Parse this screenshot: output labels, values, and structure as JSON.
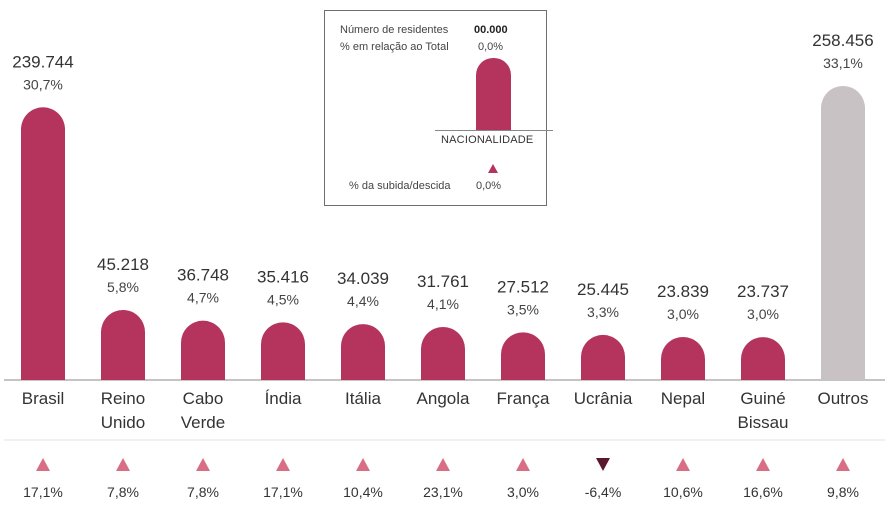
{
  "chart_data": {
    "type": "bar",
    "categories": [
      [
        "Brasil"
      ],
      [
        "Reino",
        "Unido"
      ],
      [
        "Cabo",
        "Verde"
      ],
      [
        "Índia"
      ],
      [
        "Itália"
      ],
      [
        "Angola"
      ],
      [
        "França"
      ],
      [
        "Ucrânia"
      ],
      [
        "Nepal"
      ],
      [
        "Guiné",
        "Bissau"
      ],
      [
        "Outros"
      ]
    ],
    "values": [
      239744,
      45218,
      36748,
      35416,
      34039,
      31761,
      27512,
      25445,
      23839,
      23737,
      258456
    ],
    "value_labels": [
      "239.744",
      "45.218",
      "36.748",
      "35.416",
      "34.039",
      "31.761",
      "27.512",
      "25.445",
      "23.839",
      "23.737",
      "258.456"
    ],
    "share_labels": [
      "30,7%",
      "5,8%",
      "4,7%",
      "4,5%",
      "4,4%",
      "4,1%",
      "3,5%",
      "3,3%",
      "3,0%",
      "3,0%",
      "33,1%"
    ],
    "change": [
      17.1,
      7.8,
      7.8,
      17.1,
      10.4,
      23.1,
      3.0,
      -6.4,
      10.6,
      16.6,
      9.8
    ],
    "change_labels": [
      "17,1%",
      "7,8%",
      "7,8%",
      "17,1%",
      "10,4%",
      "23,1%",
      "3,0%",
      "-6,4%",
      "10,6%",
      "16,6%",
      "9,8%"
    ],
    "colors": {
      "bar": "#b5345e",
      "other_bar": "#c8c2c5",
      "up_triangle": "#d86d86",
      "down_triangle": "#5a1730",
      "axis": "#8a8a8a"
    },
    "title": "",
    "xlabel": "",
    "ylabel": ""
  },
  "legend": {
    "residents_label": "Número de residentes",
    "residents_value": "00.000",
    "share_label": "% em relação ao Total",
    "share_value": "0,0%",
    "category_label": "NACIONALIDADE",
    "change_label": "% da subida/descida",
    "change_value": "0,0%"
  }
}
